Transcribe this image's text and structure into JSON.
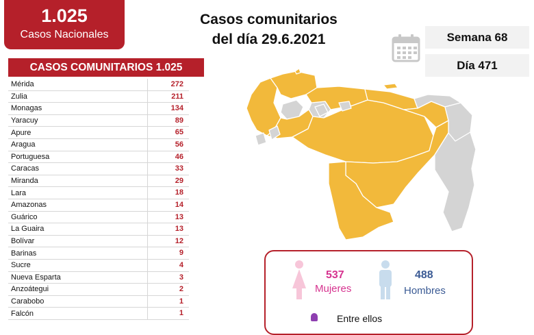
{
  "national": {
    "count": "1.025",
    "label": "Casos Nacionales"
  },
  "title": {
    "line1": "Casos comunitarios",
    "line2": "del día 29.6.2021"
  },
  "week": "Semana 68",
  "day": "Día 471",
  "table": {
    "header": "CASOS COMUNITARIOS 1.025",
    "rows": [
      {
        "name": "Mérida",
        "value": "272"
      },
      {
        "name": "Zulia",
        "value": "211"
      },
      {
        "name": "Monagas",
        "value": "134"
      },
      {
        "name": "Yaracuy",
        "value": "89"
      },
      {
        "name": "Apure",
        "value": "65"
      },
      {
        "name": "Aragua",
        "value": "56"
      },
      {
        "name": "Portuguesa",
        "value": "46"
      },
      {
        "name": "Caracas",
        "value": "33"
      },
      {
        "name": "Miranda",
        "value": "29"
      },
      {
        "name": "Lara",
        "value": "18"
      },
      {
        "name": "Amazonas",
        "value": "14"
      },
      {
        "name": "Guárico",
        "value": "13"
      },
      {
        "name": "La Guaira",
        "value": "13"
      },
      {
        "name": "Bolívar",
        "value": "12"
      },
      {
        "name": "Barinas",
        "value": "9"
      },
      {
        "name": "Sucre",
        "value": "4"
      },
      {
        "name": "Nueva Esparta",
        "value": "3"
      },
      {
        "name": "Anzoátegui",
        "value": "2"
      },
      {
        "name": "Carabobo",
        "value": "1"
      },
      {
        "name": "Falcón",
        "value": "1"
      }
    ]
  },
  "gender": {
    "female_count": "537",
    "female_label": "Mujeres",
    "male_count": "488",
    "male_label": "Hombres",
    "bottom_text": "Entre ellos"
  },
  "colors": {
    "brand_red": "#b5202a",
    "map_cases": "#f2b93b",
    "map_no_cases": "#d4d4d4",
    "female": "#d6338f",
    "male": "#3a5a94"
  },
  "icons": [
    "calendar-icon",
    "female-figure-icon",
    "male-figure-icon"
  ]
}
